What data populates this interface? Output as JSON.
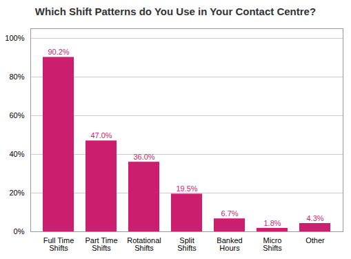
{
  "chart_data": {
    "type": "bar",
    "title": "Which Shift Patterns do You Use in Your Contact Centre?",
    "categories": [
      "Full Time\nShifts",
      "Part Time\nShifts",
      "Rotational\nShifts",
      "Split\nShifts",
      "Banked\nHours",
      "Micro\nShifts",
      "Other"
    ],
    "values": [
      90.2,
      47.0,
      36.0,
      19.5,
      6.7,
      1.8,
      4.3
    ],
    "value_labels": [
      "90.2%",
      "47.0%",
      "36.0%",
      "19.5%",
      "6.7%",
      "1.8%",
      "4.3%"
    ],
    "data_labels": true,
    "color": "#CC1E6E",
    "ylim": [
      0,
      105
    ],
    "yticks": [
      {
        "value": 0,
        "label": "0%"
      },
      {
        "value": 20,
        "label": "20%"
      },
      {
        "value": 40,
        "label": "40%"
      },
      {
        "value": 60,
        "label": "60%"
      },
      {
        "value": 80,
        "label": "80%"
      },
      {
        "value": 100,
        "label": "100%"
      }
    ],
    "grid": true
  }
}
